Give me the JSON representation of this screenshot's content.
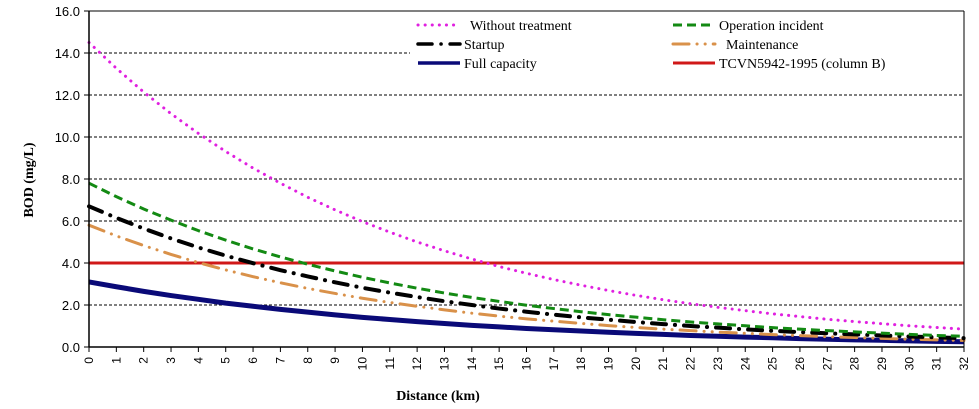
{
  "chart_data": {
    "type": "line",
    "title": "",
    "xlabel": "Distance (km)",
    "ylabel": "BOD (mg/L)",
    "xlim": [
      0,
      32
    ],
    "ylim": [
      0,
      16
    ],
    "grid": true,
    "legend_position": "top-right",
    "x": [
      0,
      1,
      2,
      3,
      4,
      5,
      6,
      7,
      8,
      9,
      10,
      11,
      12,
      13,
      14,
      15,
      16,
      17,
      18,
      19,
      20,
      21,
      22,
      23,
      24,
      25,
      26,
      27,
      28,
      29,
      30,
      31,
      32
    ],
    "x_tick_labels": [
      "0",
      "1",
      "2",
      "3",
      "4",
      "5",
      "6",
      "7",
      "8",
      "9",
      "10",
      "11",
      "12",
      "13",
      "14",
      "15",
      "16",
      "17",
      "18",
      "19",
      "20",
      "21",
      "22",
      "23",
      "24",
      "25",
      "26",
      "27",
      "28",
      "29",
      "30",
      "31",
      "32"
    ],
    "y_tick_labels": [
      "0.0",
      "2.0",
      "4.0",
      "6.0",
      "8.0",
      "10.0",
      "12.0",
      "14.0",
      "16.0"
    ],
    "y_ticks": [
      0,
      2,
      4,
      6,
      8,
      10,
      12,
      14,
      16
    ],
    "series": [
      {
        "name": "Without treatment",
        "color": "#e020e0",
        "style": "dotted",
        "values": [
          14.5,
          13.27,
          12.14,
          11.11,
          10.17,
          9.31,
          8.52,
          7.8,
          7.13,
          6.53,
          5.97,
          5.47,
          5.0,
          4.58,
          4.19,
          3.83,
          3.51,
          3.21,
          2.94,
          2.69,
          2.46,
          2.25,
          2.06,
          1.89,
          1.73,
          1.58,
          1.45,
          1.32,
          1.21,
          1.11,
          1.01,
          0.93,
          0.85
        ]
      },
      {
        "name": "Operation incident",
        "color": "#138a13",
        "style": "dashed",
        "values": [
          7.8,
          7.16,
          6.57,
          6.04,
          5.54,
          5.09,
          4.67,
          4.29,
          3.94,
          3.62,
          3.32,
          3.05,
          2.8,
          2.57,
          2.36,
          2.17,
          1.99,
          1.83,
          1.68,
          1.54,
          1.42,
          1.3,
          1.19,
          1.1,
          1.01,
          0.92,
          0.85,
          0.78,
          0.72,
          0.66,
          0.6,
          0.55,
          0.51
        ]
      },
      {
        "name": "Startup",
        "color": "#000000",
        "style": "dash-dot",
        "values": [
          6.7,
          6.15,
          5.64,
          5.17,
          4.74,
          4.35,
          3.99,
          3.66,
          3.36,
          3.08,
          2.82,
          2.59,
          2.38,
          2.18,
          2.0,
          1.83,
          1.68,
          1.54,
          1.41,
          1.3,
          1.19,
          1.09,
          1.0,
          0.92,
          0.84,
          0.77,
          0.71,
          0.65,
          0.6,
          0.55,
          0.5,
          0.46,
          0.42
        ]
      },
      {
        "name": "Maintenance",
        "color": "#d9914a",
        "style": "dash-dot-dot",
        "values": [
          5.8,
          5.29,
          4.83,
          4.41,
          4.02,
          3.67,
          3.35,
          3.06,
          2.79,
          2.55,
          2.32,
          2.12,
          1.94,
          1.77,
          1.61,
          1.47,
          1.34,
          1.23,
          1.12,
          1.02,
          0.93,
          0.85,
          0.78,
          0.71,
          0.65,
          0.59,
          0.54,
          0.49,
          0.45,
          0.41,
          0.37,
          0.34,
          0.31
        ]
      },
      {
        "name": "Full capacity",
        "color": "#0a0a78",
        "style": "solid-thick",
        "values": [
          3.1,
          2.87,
          2.65,
          2.45,
          2.27,
          2.09,
          1.94,
          1.79,
          1.66,
          1.53,
          1.41,
          1.31,
          1.21,
          1.12,
          1.03,
          0.96,
          0.88,
          0.82,
          0.76,
          0.7,
          0.65,
          0.6,
          0.55,
          0.51,
          0.47,
          0.44,
          0.4,
          0.37,
          0.34,
          0.32,
          0.29,
          0.27,
          0.25
        ]
      },
      {
        "name": "TCVN5942-1995 (column B)",
        "color": "#d01818",
        "style": "solid",
        "values": [
          4.0,
          4.0,
          4.0,
          4.0,
          4.0,
          4.0,
          4.0,
          4.0,
          4.0,
          4.0,
          4.0,
          4.0,
          4.0,
          4.0,
          4.0,
          4.0,
          4.0,
          4.0,
          4.0,
          4.0,
          4.0,
          4.0,
          4.0,
          4.0,
          4.0,
          4.0,
          4.0,
          4.0,
          4.0,
          4.0,
          4.0,
          4.0,
          4.0
        ]
      }
    ]
  }
}
